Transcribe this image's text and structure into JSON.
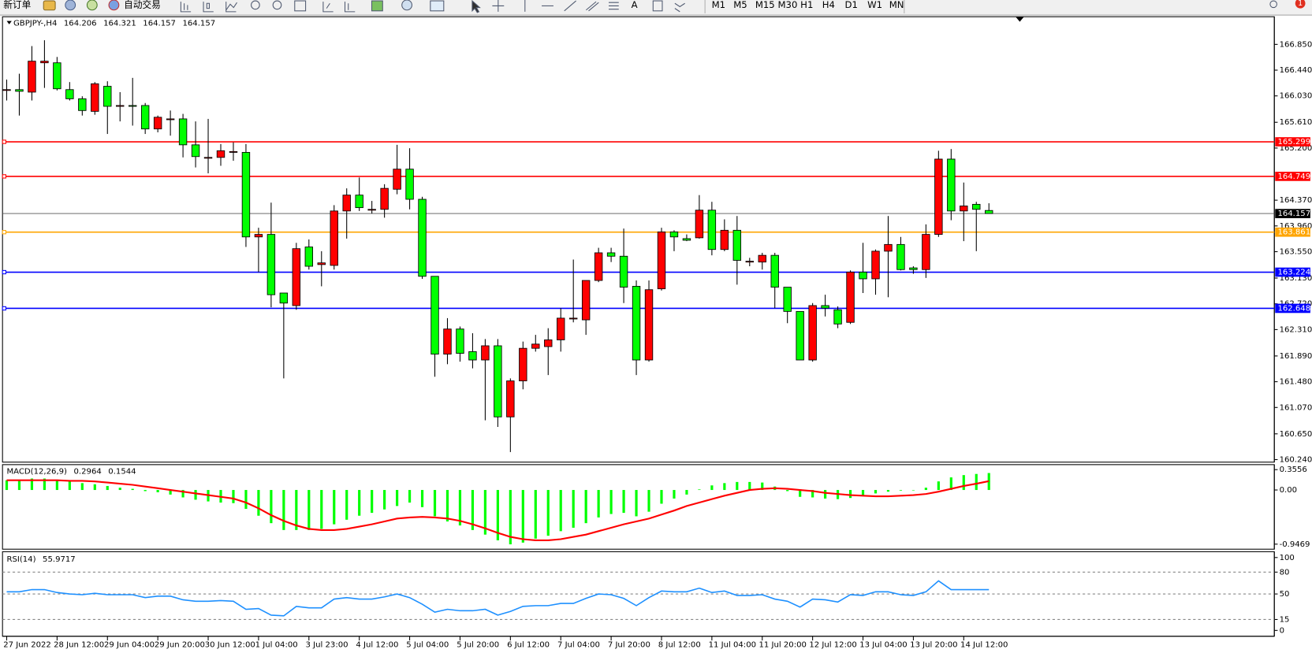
{
  "toolbar": {
    "new_order": "新订单",
    "auto_trading": "自动交易",
    "text_tool": "A",
    "timeframes": [
      "M1",
      "M5",
      "M15",
      "M30",
      "H1",
      "H4",
      "D1",
      "W1",
      "MN"
    ],
    "badge": "1"
  },
  "chart_data": [
    {
      "type": "candlestick",
      "title": "GBPJPY-,H4",
      "up_color": "#ff0000",
      "down_color": "#00ff00",
      "categories": [
        "27 Jun 2022",
        null,
        null,
        null,
        "28 Jun 12:00",
        null,
        null,
        null,
        "29 Jun 04:00",
        null,
        null,
        null,
        "29 Jun 20:00",
        null,
        null,
        null,
        "30 Jun 12:00",
        null,
        null,
        null,
        "1 Jul 04:00",
        null,
        null,
        null,
        "3 Jul 23:00",
        null,
        null,
        null,
        "4 Jul 12:00",
        null,
        null,
        null,
        "5 Jul 04:00",
        null,
        null,
        null,
        "5 Jul 20:00",
        null,
        null,
        null,
        "6 Jul 12:00",
        null,
        null,
        null,
        "7 Jul 04:00",
        null,
        null,
        null,
        "7 Jul 20:00",
        null,
        null,
        null,
        "8 Jul 12:00",
        null,
        null,
        null,
        "11 Jul 04:00",
        null,
        null,
        null,
        "11 Jul 20:00",
        null,
        null,
        null,
        "12 Jul 12:00",
        null,
        null,
        null,
        "13 Jul 04:00",
        null,
        null,
        null,
        "13 Jul 20:00",
        null,
        null,
        null,
        "14 Jul 12:00",
        null,
        null
      ],
      "open": [
        166.117,
        166.13,
        166.09,
        166.557,
        166.557,
        166.13,
        165.984,
        165.784,
        166.183,
        165.877,
        165.877,
        165.877,
        165.504,
        165.664,
        165.664,
        165.251,
        165.051,
        165.051,
        165.144,
        165.131,
        163.785,
        163.825,
        162.892,
        162.692,
        163.625,
        163.345,
        163.332,
        164.198,
        164.451,
        164.224,
        164.224,
        164.544,
        164.864,
        164.384,
        163.158,
        161.919,
        162.319,
        161.959,
        161.826,
        162.052,
        160.92,
        161.493,
        162.012,
        162.039,
        162.146,
        162.492,
        162.465,
        163.092,
        163.532,
        163.478,
        162.999,
        161.826,
        162.959,
        163.865,
        163.758,
        163.771,
        164.211,
        163.585,
        163.891,
        163.385,
        163.385,
        163.492,
        162.985,
        162.599,
        161.826,
        162.692,
        162.625,
        162.425,
        163.225,
        163.118,
        163.558,
        163.665,
        163.292,
        163.265,
        163.825,
        165.024,
        164.198,
        164.304,
        164.206
      ],
      "high": [
        166.29,
        166.383,
        166.823,
        166.916,
        166.65,
        166.25,
        166.024,
        166.25,
        166.263,
        166.09,
        166.317,
        165.917,
        165.717,
        165.797,
        165.744,
        165.624,
        165.664,
        165.264,
        165.291,
        165.264,
        163.931,
        164.331,
        162.892,
        163.691,
        163.745,
        163.558,
        164.291,
        164.558,
        164.731,
        164.358,
        164.624,
        165.251,
        165.197,
        164.424,
        163.158,
        162.492,
        162.359,
        162.252,
        162.159,
        162.159,
        161.533,
        162.119,
        162.226,
        162.332,
        162.652,
        163.425,
        163.092,
        163.612,
        163.612,
        163.918,
        163.092,
        163.092,
        163.931,
        163.891,
        163.825,
        164.451,
        164.344,
        164.065,
        164.118,
        163.452,
        163.532,
        163.532,
        162.985,
        162.599,
        162.732,
        162.865,
        162.679,
        163.252,
        163.691,
        163.585,
        164.118,
        163.785,
        163.318,
        163.985,
        165.157,
        165.184,
        164.651,
        164.344,
        164.321
      ],
      "low": [
        165.957,
        165.717,
        165.957,
        166.157,
        166.117,
        165.957,
        165.717,
        165.73,
        165.424,
        165.624,
        165.557,
        165.424,
        165.45,
        165.397,
        165.051,
        164.891,
        164.797,
        164.917,
        164.997,
        163.625,
        163.225,
        162.665,
        161.533,
        162.625,
        163.265,
        162.999,
        163.265,
        163.758,
        164.198,
        164.158,
        164.091,
        164.464,
        164.224,
        163.118,
        161.559,
        161.759,
        161.799,
        161.693,
        160.866,
        160.76,
        160.36,
        161.359,
        161.959,
        161.586,
        161.959,
        162.425,
        162.226,
        163.065,
        163.385,
        162.732,
        161.586,
        161.799,
        162.932,
        163.558,
        163.718,
        163.758,
        163.492,
        163.558,
        163.025,
        163.318,
        163.265,
        162.652,
        162.412,
        161.826,
        161.799,
        162.519,
        162.332,
        162.399,
        162.892,
        162.865,
        162.825,
        163.252,
        163.198,
        163.132,
        163.785,
        164.051,
        163.718,
        163.558,
        164.157
      ],
      "close": [
        166.13,
        166.103,
        166.583,
        166.583,
        166.143,
        165.984,
        165.797,
        166.223,
        165.864,
        165.877,
        165.864,
        165.504,
        165.69,
        165.664,
        165.251,
        165.064,
        165.051,
        165.157,
        165.144,
        163.785,
        163.825,
        162.865,
        162.732,
        163.598,
        163.318,
        163.372,
        164.198,
        164.451,
        164.251,
        164.224,
        164.558,
        164.864,
        164.384,
        163.158,
        161.919,
        162.319,
        161.932,
        161.826,
        162.052,
        160.92,
        161.493,
        162.012,
        162.079,
        162.146,
        162.492,
        162.492,
        163.092,
        163.532,
        163.478,
        162.985,
        161.826,
        162.945,
        163.865,
        163.785,
        163.732,
        164.211,
        163.585,
        163.891,
        163.412,
        163.398,
        163.492,
        162.985,
        162.599,
        161.826,
        162.692,
        162.652,
        162.399,
        163.225,
        163.118,
        163.558,
        163.665,
        163.265,
        163.265,
        163.825,
        165.024,
        164.198,
        164.278,
        164.224,
        164.157
      ],
      "levels": [
        {
          "value": 165.299,
          "color": "#ff0000"
        },
        {
          "value": 164.749,
          "color": "#ff0000"
        },
        {
          "value": 163.861,
          "color": "#ffa500"
        },
        {
          "value": 163.224,
          "color": "#0000ff"
        },
        {
          "value": 162.648,
          "color": "#0000ff"
        }
      ],
      "ylim": [
        160.2,
        167.29
      ],
      "yticks": [
        {
          "value": 160.24,
          "label": "160.240"
        },
        {
          "value": 160.65,
          "label": "160.650"
        },
        {
          "value": 161.07,
          "label": "161.070"
        },
        {
          "value": 161.48,
          "label": "161.480"
        },
        {
          "value": 161.89,
          "label": "161.890"
        },
        {
          "value": 162.31,
          "label": "162.310"
        },
        {
          "value": 162.72,
          "label": "162.720"
        },
        {
          "value": 163.13,
          "label": "163.130"
        },
        {
          "value": 163.55,
          "label": "163.550"
        },
        {
          "value": 163.96,
          "label": "163.960"
        },
        {
          "value": 164.37,
          "label": "164.370"
        },
        {
          "value": 165.2,
          "label": "165.200"
        },
        {
          "value": 165.61,
          "label": "165.610"
        },
        {
          "value": 166.03,
          "label": "166.030"
        },
        {
          "value": 166.44,
          "label": "166.440"
        },
        {
          "value": 166.85,
          "label": "166.850"
        }
      ]
    },
    {
      "type": "macd",
      "title": "MACD(12,26,9)",
      "series": [
        {
          "style": "histogram",
          "color": "#00ff00",
          "values": [
            0.17,
            0.18,
            0.2,
            0.2,
            0.18,
            0.15,
            0.12,
            0.1,
            0.07,
            0.04,
            0.02,
            -0.02,
            -0.04,
            -0.08,
            -0.13,
            -0.17,
            -0.2,
            -0.22,
            -0.23,
            -0.33,
            -0.45,
            -0.58,
            -0.7,
            -0.7,
            -0.7,
            -0.68,
            -0.6,
            -0.52,
            -0.45,
            -0.4,
            -0.34,
            -0.28,
            -0.22,
            -0.3,
            -0.46,
            -0.55,
            -0.62,
            -0.7,
            -0.78,
            -0.88,
            -0.95,
            -0.92,
            -0.85,
            -0.8,
            -0.72,
            -0.66,
            -0.58,
            -0.48,
            -0.42,
            -0.4,
            -0.46,
            -0.38,
            -0.24,
            -0.15,
            -0.08,
            0.01,
            0.08,
            0.12,
            0.14,
            0.14,
            0.13,
            0.06,
            -0.02,
            -0.12,
            -0.13,
            -0.15,
            -0.16,
            -0.14,
            -0.1,
            -0.06,
            -0.03,
            -0.01,
            0.0,
            0.04,
            0.15,
            0.22,
            0.26,
            0.28,
            0.2964
          ]
        },
        {
          "style": "line",
          "color": "#ff0000",
          "values": [
            0.17,
            0.17,
            0.17,
            0.17,
            0.17,
            0.16,
            0.16,
            0.15,
            0.13,
            0.11,
            0.09,
            0.06,
            0.03,
            0.0,
            -0.03,
            -0.06,
            -0.09,
            -0.12,
            -0.15,
            -0.22,
            -0.32,
            -0.44,
            -0.54,
            -0.62,
            -0.68,
            -0.7,
            -0.7,
            -0.68,
            -0.64,
            -0.6,
            -0.55,
            -0.5,
            -0.48,
            -0.47,
            -0.48,
            -0.5,
            -0.54,
            -0.6,
            -0.67,
            -0.75,
            -0.82,
            -0.86,
            -0.88,
            -0.88,
            -0.86,
            -0.82,
            -0.78,
            -0.72,
            -0.66,
            -0.6,
            -0.55,
            -0.5,
            -0.43,
            -0.36,
            -0.28,
            -0.22,
            -0.16,
            -0.1,
            -0.05,
            0.0,
            0.02,
            0.03,
            0.02,
            0.0,
            -0.02,
            -0.05,
            -0.07,
            -0.09,
            -0.1,
            -0.11,
            -0.11,
            -0.1,
            -0.09,
            -0.07,
            -0.03,
            0.02,
            0.07,
            0.11,
            0.1544
          ]
        }
      ],
      "ylim": [
        -1.035,
        0.443
      ],
      "yticks": [
        -0.9469,
        {
          "value": 0,
          "label": "0.00"
        },
        0.3556
      ]
    },
    {
      "type": "line",
      "title": "RSI(14)",
      "series": [
        {
          "color": "#1e90ff",
          "values": [
            53,
            53,
            56,
            56,
            52,
            50,
            49,
            51,
            49,
            49,
            49,
            45,
            47,
            47,
            42,
            40,
            40,
            41,
            40,
            29,
            30,
            21,
            20,
            33,
            31,
            31,
            43,
            45,
            43,
            43,
            46,
            50,
            45,
            36,
            25,
            29,
            27,
            27,
            29,
            21,
            26,
            33,
            34,
            34,
            37,
            37,
            44,
            50,
            49,
            44,
            34,
            45,
            54,
            53,
            53,
            58,
            52,
            54,
            48,
            48,
            49,
            43,
            40,
            32,
            43,
            42,
            39,
            49,
            48,
            53,
            53,
            49,
            48,
            53,
            68,
            56,
            56,
            56,
            55.9717
          ]
        }
      ],
      "levels": [
        15,
        50,
        80
      ],
      "ylim": [
        -8,
        108
      ],
      "yticks": [
        0,
        15,
        50,
        80,
        100
      ]
    }
  ]
}
